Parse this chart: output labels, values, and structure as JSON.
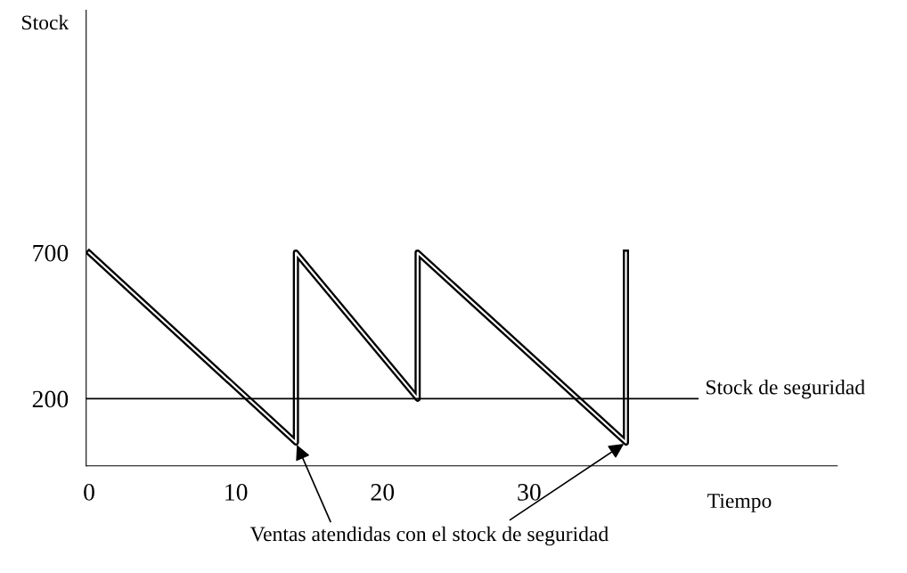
{
  "chart_data": {
    "type": "line",
    "xlabel": "Tiempo",
    "ylabel": "Stock",
    "x": [
      0,
      14.1,
      14.1,
      22.4,
      22.4,
      36.6,
      36.6
    ],
    "series": [
      {
        "color": "#000000",
        "values": [
          700,
          50,
          700,
          200,
          700,
          50,
          700
        ]
      }
    ],
    "xlim": [
      -0.2,
      51
    ],
    "ylim": [
      -30,
      1530
    ],
    "xticks": [
      0,
      10,
      20,
      30
    ],
    "yticks": [
      200,
      700
    ],
    "ref_lines": [
      {
        "axis": "y",
        "value": 200,
        "label": "Stock de seguridad",
        "color": "#000000"
      }
    ],
    "annotations": [
      {
        "text": "Ventas atendidas con el stock de seguridad",
        "x": 14.1,
        "y": 50
      }
    ],
    "grid": false,
    "legend": false,
    "marker": "none",
    "line_style": "solid"
  }
}
